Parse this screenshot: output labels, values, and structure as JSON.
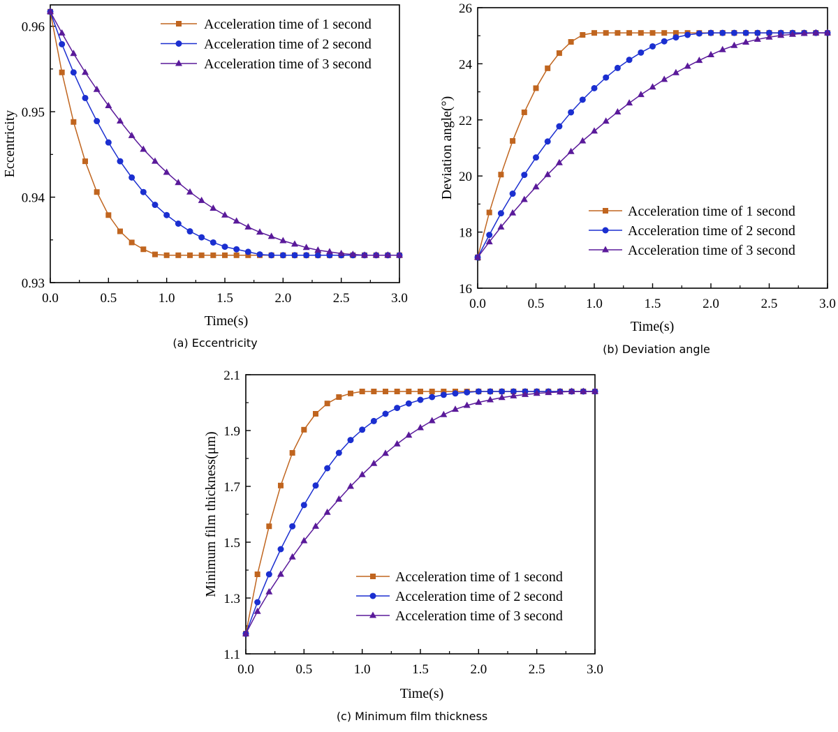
{
  "chart_data": [
    {
      "id": "a",
      "type": "line",
      "caption": "(a) Eccentricity",
      "xlabel": "Time(s)",
      "ylabel": "Eccentricity",
      "xlim": [
        0,
        3
      ],
      "ylim": [
        0.93,
        0.9625
      ],
      "xticks": [
        0,
        0.5,
        1,
        1.5,
        2,
        2.5,
        3
      ],
      "xtick_labels": [
        "0.0",
        "0.5",
        "1.0",
        "1.5",
        "2.0",
        "2.5",
        "3.0"
      ],
      "yticks": [
        0.93,
        0.94,
        0.95,
        0.96
      ],
      "ytick_labels": [
        "0.93",
        "0.94",
        "0.95",
        "0.96"
      ],
      "legend_position": "top-right",
      "x": [
        0,
        0.1,
        0.2,
        0.3,
        0.4,
        0.5,
        0.6,
        0.7,
        0.8,
        0.9,
        1.0,
        1.1,
        1.2,
        1.3,
        1.4,
        1.5,
        1.6,
        1.7,
        1.8,
        1.9,
        2.0,
        2.1,
        2.2,
        2.3,
        2.4,
        2.5,
        2.6,
        2.7,
        2.8,
        2.9,
        3.0
      ],
      "series": [
        {
          "name": "Acceleration time of 1 second",
          "color": "#c0651f",
          "marker": "square",
          "values": [
            0.9617,
            0.9546,
            0.9488,
            0.9442,
            0.9406,
            0.9379,
            0.936,
            0.9347,
            0.9339,
            0.9333,
            0.9332,
            0.9332,
            0.9332,
            0.9332,
            0.9332,
            0.9332,
            0.9332,
            0.9332,
            0.9332,
            0.9332,
            0.9332,
            0.9332,
            0.9332,
            0.9332,
            0.9332,
            0.9332,
            0.9332,
            0.9332,
            0.9332,
            0.9332,
            0.9332
          ]
        },
        {
          "name": "Acceleration time of 2 second",
          "color": "#1b2fd0",
          "marker": "circle",
          "values": [
            0.9617,
            0.9579,
            0.9546,
            0.9516,
            0.9489,
            0.9464,
            0.9442,
            0.9423,
            0.9406,
            0.9391,
            0.9379,
            0.9369,
            0.936,
            0.9353,
            0.9347,
            0.9342,
            0.9339,
            0.9336,
            0.9333,
            0.9332,
            0.9332,
            0.9332,
            0.9332,
            0.9332,
            0.9332,
            0.9332,
            0.9332,
            0.9332,
            0.9332,
            0.9332,
            0.9332
          ]
        },
        {
          "name": "Acceleration time of 3 second",
          "color": "#5a1a9a",
          "marker": "triangle",
          "values": [
            0.9617,
            0.9592,
            0.9568,
            0.9546,
            0.9526,
            0.9507,
            0.9489,
            0.9472,
            0.9456,
            0.9442,
            0.9429,
            0.9417,
            0.9406,
            0.9396,
            0.9387,
            0.9379,
            0.9372,
            0.9365,
            0.9359,
            0.9354,
            0.9349,
            0.9345,
            0.9341,
            0.9338,
            0.9336,
            0.9334,
            0.9333,
            0.9332,
            0.9332,
            0.9332,
            0.9332
          ]
        }
      ]
    },
    {
      "id": "b",
      "type": "line",
      "caption": "(b) Deviation angle",
      "xlabel": "Time(s)",
      "ylabel": "Deviation angle(°)",
      "xlim": [
        0,
        3
      ],
      "ylim": [
        16,
        26
      ],
      "xticks": [
        0,
        0.5,
        1,
        1.5,
        2,
        2.5,
        3
      ],
      "xtick_labels": [
        "0.0",
        "0.5",
        "1.0",
        "1.5",
        "2.0",
        "2.5",
        "3.0"
      ],
      "yticks": [
        16,
        18,
        20,
        22,
        24,
        26
      ],
      "ytick_labels": [
        "16",
        "18",
        "20",
        "22",
        "24",
        "26"
      ],
      "legend_position": "bottom-right",
      "x": [
        0,
        0.1,
        0.2,
        0.3,
        0.4,
        0.5,
        0.6,
        0.7,
        0.8,
        0.9,
        1.0,
        1.1,
        1.2,
        1.3,
        1.4,
        1.5,
        1.6,
        1.7,
        1.8,
        1.9,
        2.0,
        2.1,
        2.2,
        2.3,
        2.4,
        2.5,
        2.6,
        2.7,
        2.8,
        2.9,
        3.0
      ],
      "series": [
        {
          "name": "Acceleration time of 1 second",
          "color": "#c0651f",
          "marker": "square",
          "values": [
            17.1,
            18.7,
            20.05,
            21.25,
            22.27,
            23.13,
            23.84,
            24.38,
            24.78,
            25.03,
            25.1,
            25.1,
            25.1,
            25.1,
            25.1,
            25.1,
            25.1,
            25.1,
            25.1,
            25.1,
            25.1,
            25.1,
            25.1,
            25.1,
            25.1,
            25.1,
            25.1,
            25.1,
            25.1,
            25.1,
            25.1
          ]
        },
        {
          "name": "Acceleration time of 2 second",
          "color": "#1b2fd0",
          "marker": "circle",
          "values": [
            17.1,
            17.9,
            18.67,
            19.37,
            20.04,
            20.66,
            21.23,
            21.77,
            22.27,
            22.72,
            23.13,
            23.51,
            23.85,
            24.14,
            24.4,
            24.62,
            24.8,
            24.94,
            25.03,
            25.08,
            25.1,
            25.1,
            25.1,
            25.1,
            25.1,
            25.1,
            25.1,
            25.1,
            25.1,
            25.1,
            25.1
          ]
        },
        {
          "name": "Acceleration time of 3 second",
          "color": "#5a1a9a",
          "marker": "triangle",
          "values": [
            17.1,
            17.65,
            18.18,
            18.68,
            19.16,
            19.61,
            20.05,
            20.47,
            20.87,
            21.25,
            21.6,
            21.95,
            22.28,
            22.6,
            22.9,
            23.17,
            23.44,
            23.68,
            23.91,
            24.12,
            24.32,
            24.5,
            24.65,
            24.77,
            24.87,
            24.95,
            25.01,
            25.05,
            25.08,
            25.1,
            25.1
          ]
        }
      ]
    },
    {
      "id": "c",
      "type": "line",
      "caption": "(c) Minimum film thickness",
      "xlabel": "Time(s)",
      "ylabel": "Minimum film thickness(μm)",
      "xlim": [
        0,
        3
      ],
      "ylim": [
        1.1,
        2.1
      ],
      "xticks": [
        0,
        0.5,
        1,
        1.5,
        2,
        2.5,
        3
      ],
      "xtick_labels": [
        "0.0",
        "0.5",
        "1.0",
        "1.5",
        "2.0",
        "2.5",
        "3.0"
      ],
      "yticks": [
        1.1,
        1.3,
        1.5,
        1.7,
        1.9,
        2.1
      ],
      "ytick_labels": [
        "1.1",
        "1.3",
        "1.5",
        "1.7",
        "1.9",
        "2.1"
      ],
      "legend_position": "bottom-right",
      "x": [
        0,
        0.1,
        0.2,
        0.3,
        0.4,
        0.5,
        0.6,
        0.7,
        0.8,
        0.9,
        1.0,
        1.1,
        1.2,
        1.3,
        1.4,
        1.5,
        1.6,
        1.7,
        1.8,
        1.9,
        2.0,
        2.1,
        2.2,
        2.3,
        2.4,
        2.5,
        2.6,
        2.7,
        2.8,
        2.9,
        3.0
      ],
      "series": [
        {
          "name": "Acceleration time of 1 second",
          "color": "#c0651f",
          "marker": "square",
          "values": [
            1.172,
            1.385,
            1.557,
            1.703,
            1.82,
            1.903,
            1.96,
            1.997,
            2.02,
            2.033,
            2.04,
            2.04,
            2.04,
            2.04,
            2.04,
            2.04,
            2.04,
            2.04,
            2.04,
            2.04,
            2.04,
            2.04,
            2.04,
            2.04,
            2.04,
            2.04,
            2.04,
            2.04,
            2.04,
            2.04,
            2.04
          ]
        },
        {
          "name": "Acceleration time of 2 second",
          "color": "#1b2fd0",
          "marker": "circle",
          "values": [
            1.172,
            1.285,
            1.385,
            1.475,
            1.557,
            1.633,
            1.703,
            1.765,
            1.82,
            1.866,
            1.903,
            1.934,
            1.96,
            1.981,
            1.997,
            2.01,
            2.02,
            2.028,
            2.033,
            2.037,
            2.04,
            2.04,
            2.04,
            2.04,
            2.04,
            2.04,
            2.04,
            2.04,
            2.04,
            2.04,
            2.04
          ]
        },
        {
          "name": "Acceleration time of 3 second",
          "color": "#5a1a9a",
          "marker": "triangle",
          "values": [
            1.172,
            1.252,
            1.322,
            1.385,
            1.447,
            1.505,
            1.557,
            1.607,
            1.654,
            1.7,
            1.742,
            1.782,
            1.818,
            1.852,
            1.883,
            1.91,
            1.935,
            1.957,
            1.976,
            1.99,
            2.001,
            2.01,
            2.018,
            2.024,
            2.029,
            2.033,
            2.036,
            2.038,
            2.04,
            2.04,
            2.04
          ]
        }
      ]
    }
  ]
}
